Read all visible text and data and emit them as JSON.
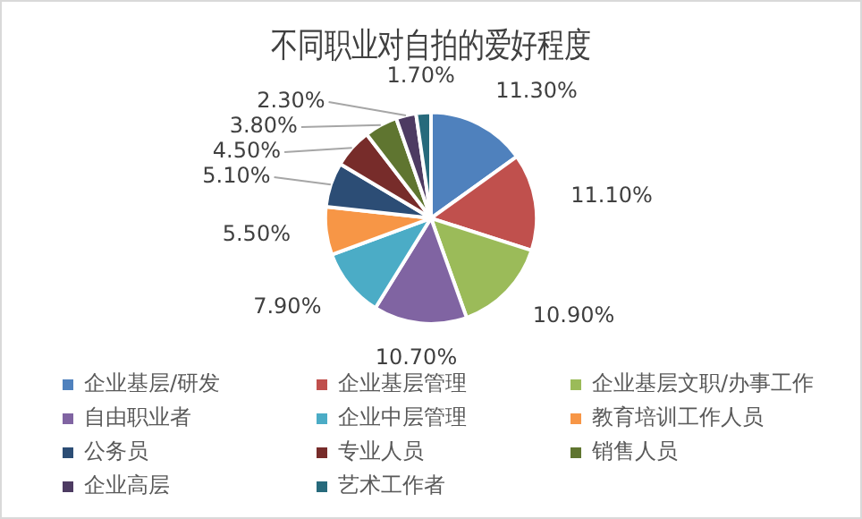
{
  "chart_data": {
    "type": "pie",
    "title": "不同职业对自拍的爱好程度",
    "categories": [
      "企业基层/研发",
      "企业基层管理",
      "企业基层文职/办事工作",
      "自由职业者",
      "企业中层管理",
      "教育培训工作人员",
      "公务员",
      "专业人员",
      "销售人员",
      "企业高层",
      "艺术工作者"
    ],
    "values": [
      11.3,
      11.1,
      10.9,
      10.7,
      7.9,
      5.5,
      5.1,
      4.5,
      3.8,
      2.3,
      1.7
    ],
    "value_labels": [
      "11.30%",
      "11.10%",
      "10.90%",
      "10.70%",
      "7.90%",
      "5.50%",
      "5.10%",
      "4.50%",
      "3.80%",
      "2.30%",
      "1.70%"
    ],
    "colors": [
      "#4f81bd",
      "#c0504d",
      "#9bbb59",
      "#8064a2",
      "#4bacc6",
      "#f79646",
      "#2c4d75",
      "#772c2a",
      "#5f7530",
      "#4d3b62",
      "#276a7c"
    ],
    "legend": "bottom"
  }
}
